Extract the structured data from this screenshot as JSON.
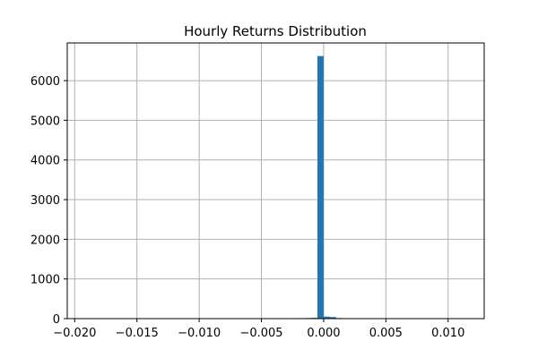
{
  "chart_data": {
    "type": "bar",
    "title": "Hourly Returns Distribution",
    "xlabel": "",
    "ylabel": "",
    "xlim": [
      -0.0206,
      0.0129
    ],
    "ylim": [
      0,
      6950
    ],
    "grid": true,
    "x_ticks": [
      {
        "value": -0.02,
        "label": "−0.020"
      },
      {
        "value": -0.015,
        "label": "−0.015"
      },
      {
        "value": -0.01,
        "label": "−0.010"
      },
      {
        "value": -0.005,
        "label": "−0.005"
      },
      {
        "value": 0.0,
        "label": "0.000"
      },
      {
        "value": 0.005,
        "label": "0.005"
      },
      {
        "value": 0.01,
        "label": "0.010"
      }
    ],
    "y_ticks": [
      {
        "value": 0,
        "label": "0"
      },
      {
        "value": 1000,
        "label": "1000"
      },
      {
        "value": 2000,
        "label": "2000"
      },
      {
        "value": 3000,
        "label": "3000"
      },
      {
        "value": 4000,
        "label": "4000"
      },
      {
        "value": 5000,
        "label": "5000"
      },
      {
        "value": 6000,
        "label": "6000"
      }
    ],
    "bin_edges": [
      -0.003,
      -0.0025,
      -0.002,
      -0.0015,
      -0.001,
      -0.0005,
      0.0,
      0.0005,
      0.001,
      0.0015,
      0.002,
      0.0025
    ],
    "counts": [
      8,
      10,
      12,
      15,
      20,
      6620,
      50,
      40,
      15,
      8,
      5
    ],
    "bar_color": "#1f77b4",
    "grid_color": "#b0b0b0"
  }
}
